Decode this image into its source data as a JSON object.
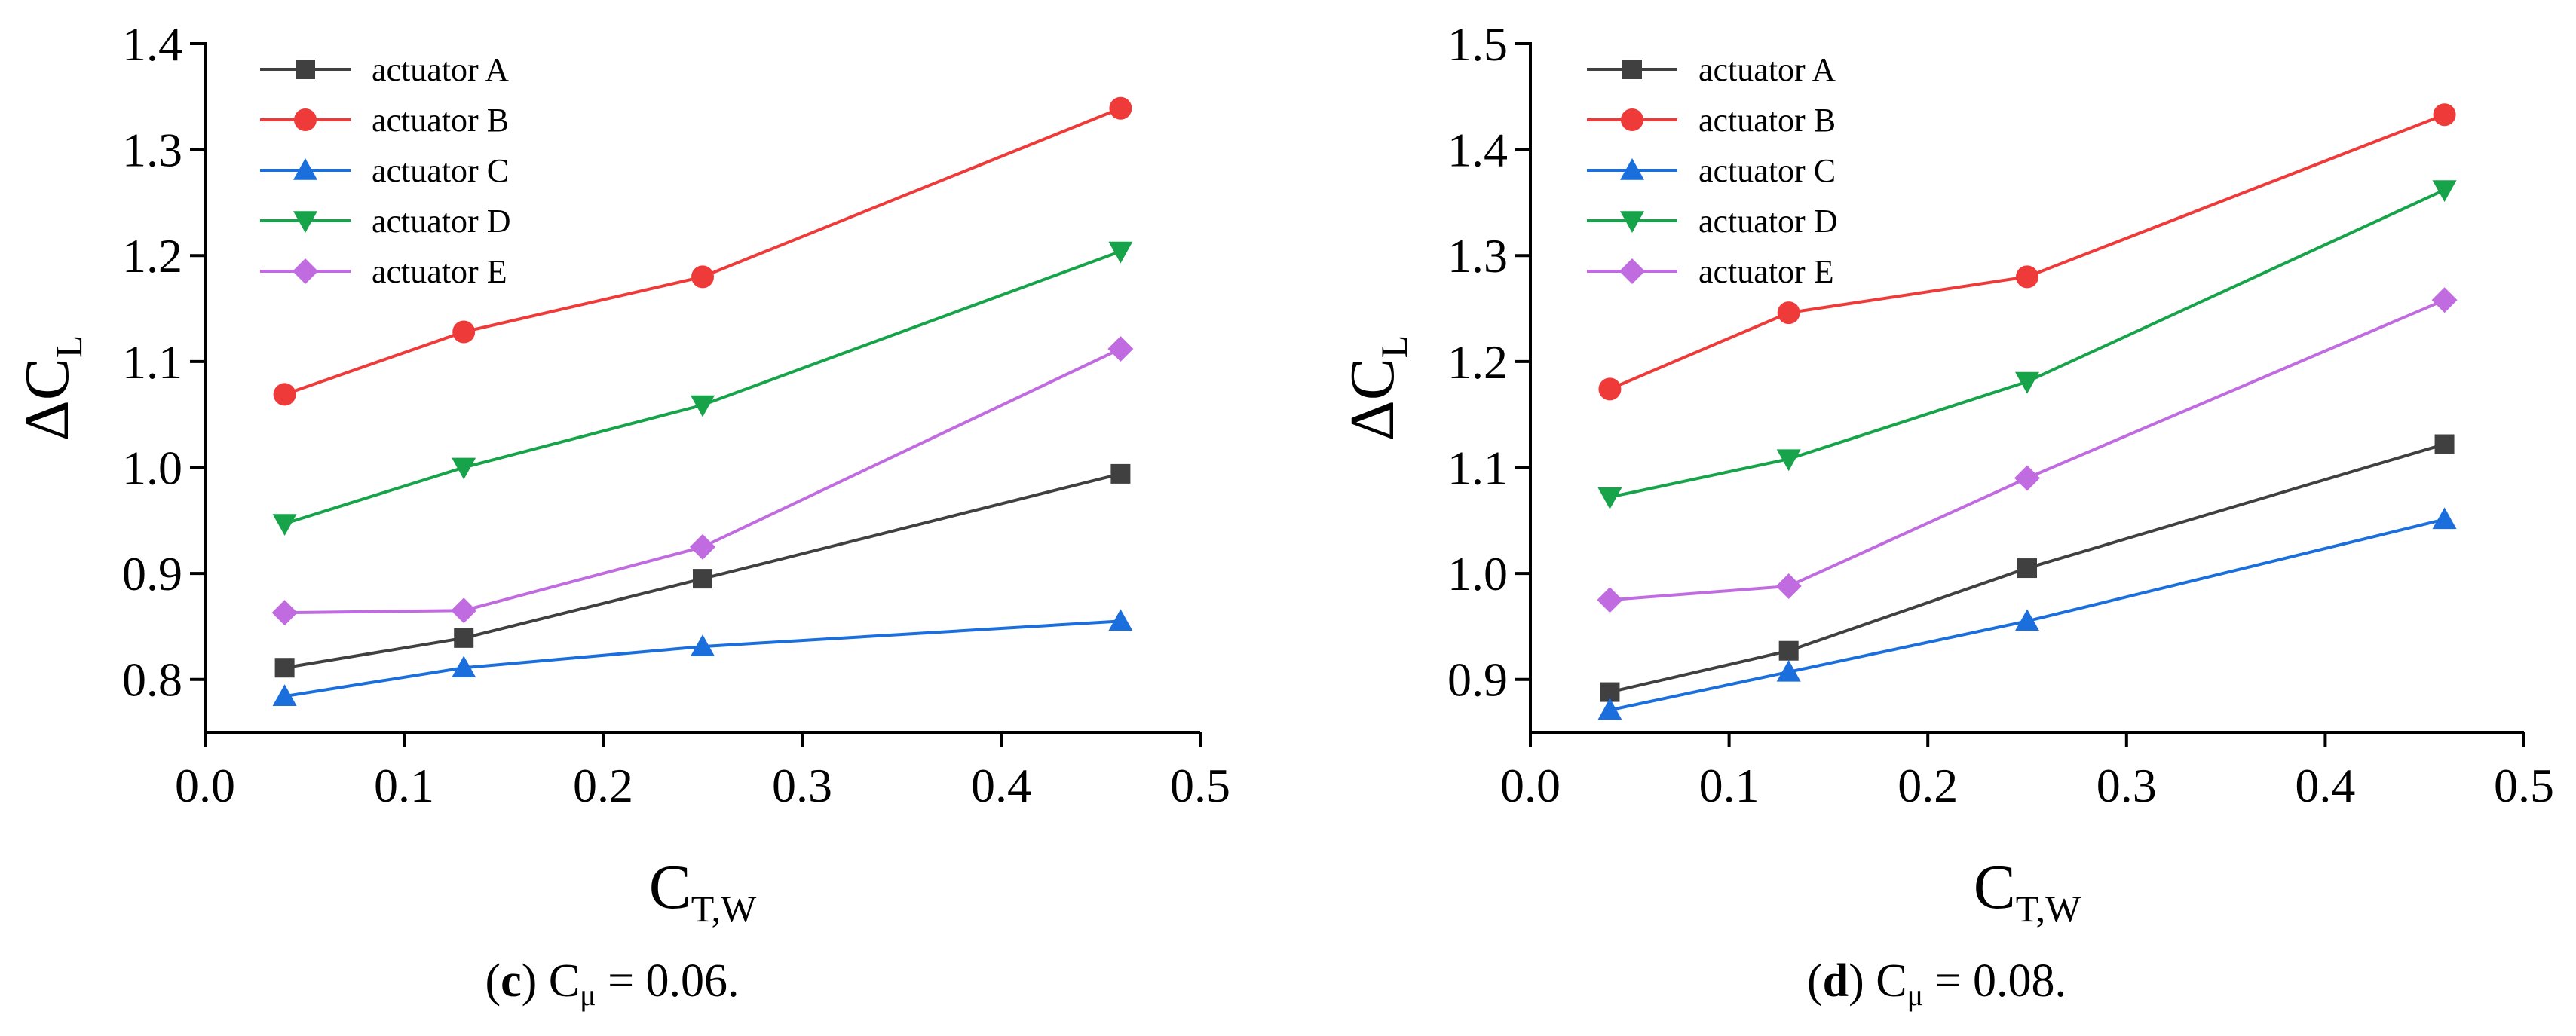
{
  "chart_data": [
    {
      "type": "line",
      "panel": "(c)",
      "caption": {
        "letter": "c",
        "open": "(",
        "close": ")",
        "symbol": "C",
        "subscript": "μ",
        "rest": " = 0.06."
      },
      "xlabel": {
        "main": "C",
        "sub": "T,W"
      },
      "ylabel": {
        "prefix": "Δ",
        "main": "C",
        "sub": "L"
      },
      "xlim": [
        0.0,
        0.5
      ],
      "ylim": [
        0.75,
        1.4
      ],
      "xticks": [
        "0.0",
        "0.1",
        "0.2",
        "0.3",
        "0.4",
        "0.5"
      ],
      "yticks": [
        "0.8",
        "0.9",
        "1.0",
        "1.1",
        "1.2",
        "1.3",
        "1.4"
      ],
      "x": [
        0.04,
        0.13,
        0.25,
        0.46
      ],
      "legend_position": "top-left",
      "series": [
        {
          "name": "actuator A",
          "color": "#404040",
          "marker": "square",
          "values": [
            0.811,
            0.839,
            0.895,
            0.994
          ]
        },
        {
          "name": "actuator B",
          "color": "#ef3a3a",
          "marker": "circle",
          "values": [
            1.069,
            1.128,
            1.18,
            1.339
          ]
        },
        {
          "name": "actuator C",
          "color": "#1b6fdc",
          "marker": "triangle-up",
          "values": [
            0.784,
            0.811,
            0.831,
            0.855
          ]
        },
        {
          "name": "actuator D",
          "color": "#16a34a",
          "marker": "triangle-down",
          "values": [
            0.947,
            1.0,
            1.059,
            1.204
          ]
        },
        {
          "name": "actuator E",
          "color": "#c06ce0",
          "marker": "diamond",
          "values": [
            0.863,
            0.865,
            0.925,
            1.112
          ]
        }
      ]
    },
    {
      "type": "line",
      "panel": "(d)",
      "caption": {
        "letter": "d",
        "open": "(",
        "close": ")",
        "symbol": "C",
        "subscript": "μ",
        "rest": " = 0.08."
      },
      "xlabel": {
        "main": "C",
        "sub": "T,W"
      },
      "ylabel": {
        "prefix": "Δ",
        "main": "C",
        "sub": "L"
      },
      "xlim": [
        0.0,
        0.5
      ],
      "ylim": [
        0.85,
        1.5
      ],
      "xticks": [
        "0.0",
        "0.1",
        "0.2",
        "0.3",
        "0.4",
        "0.5"
      ],
      "yticks": [
        "0.9",
        "1.0",
        "1.1",
        "1.2",
        "1.3",
        "1.4",
        "1.5"
      ],
      "x": [
        0.04,
        0.13,
        0.25,
        0.46
      ],
      "legend_position": "top-left",
      "series": [
        {
          "name": "actuator A",
          "color": "#404040",
          "marker": "square",
          "values": [
            0.888,
            0.927,
            1.005,
            1.122
          ]
        },
        {
          "name": "actuator B",
          "color": "#ef3a3a",
          "marker": "circle",
          "values": [
            1.174,
            1.246,
            1.28,
            1.433
          ]
        },
        {
          "name": "actuator C",
          "color": "#1b6fdc",
          "marker": "triangle-up",
          "values": [
            0.871,
            0.907,
            0.955,
            1.051
          ]
        },
        {
          "name": "actuator D",
          "color": "#16a34a",
          "marker": "triangle-down",
          "values": [
            1.072,
            1.108,
            1.181,
            1.362
          ]
        },
        {
          "name": "actuator E",
          "color": "#c06ce0",
          "marker": "diamond",
          "values": [
            0.975,
            0.988,
            1.09,
            1.258
          ]
        }
      ]
    }
  ]
}
